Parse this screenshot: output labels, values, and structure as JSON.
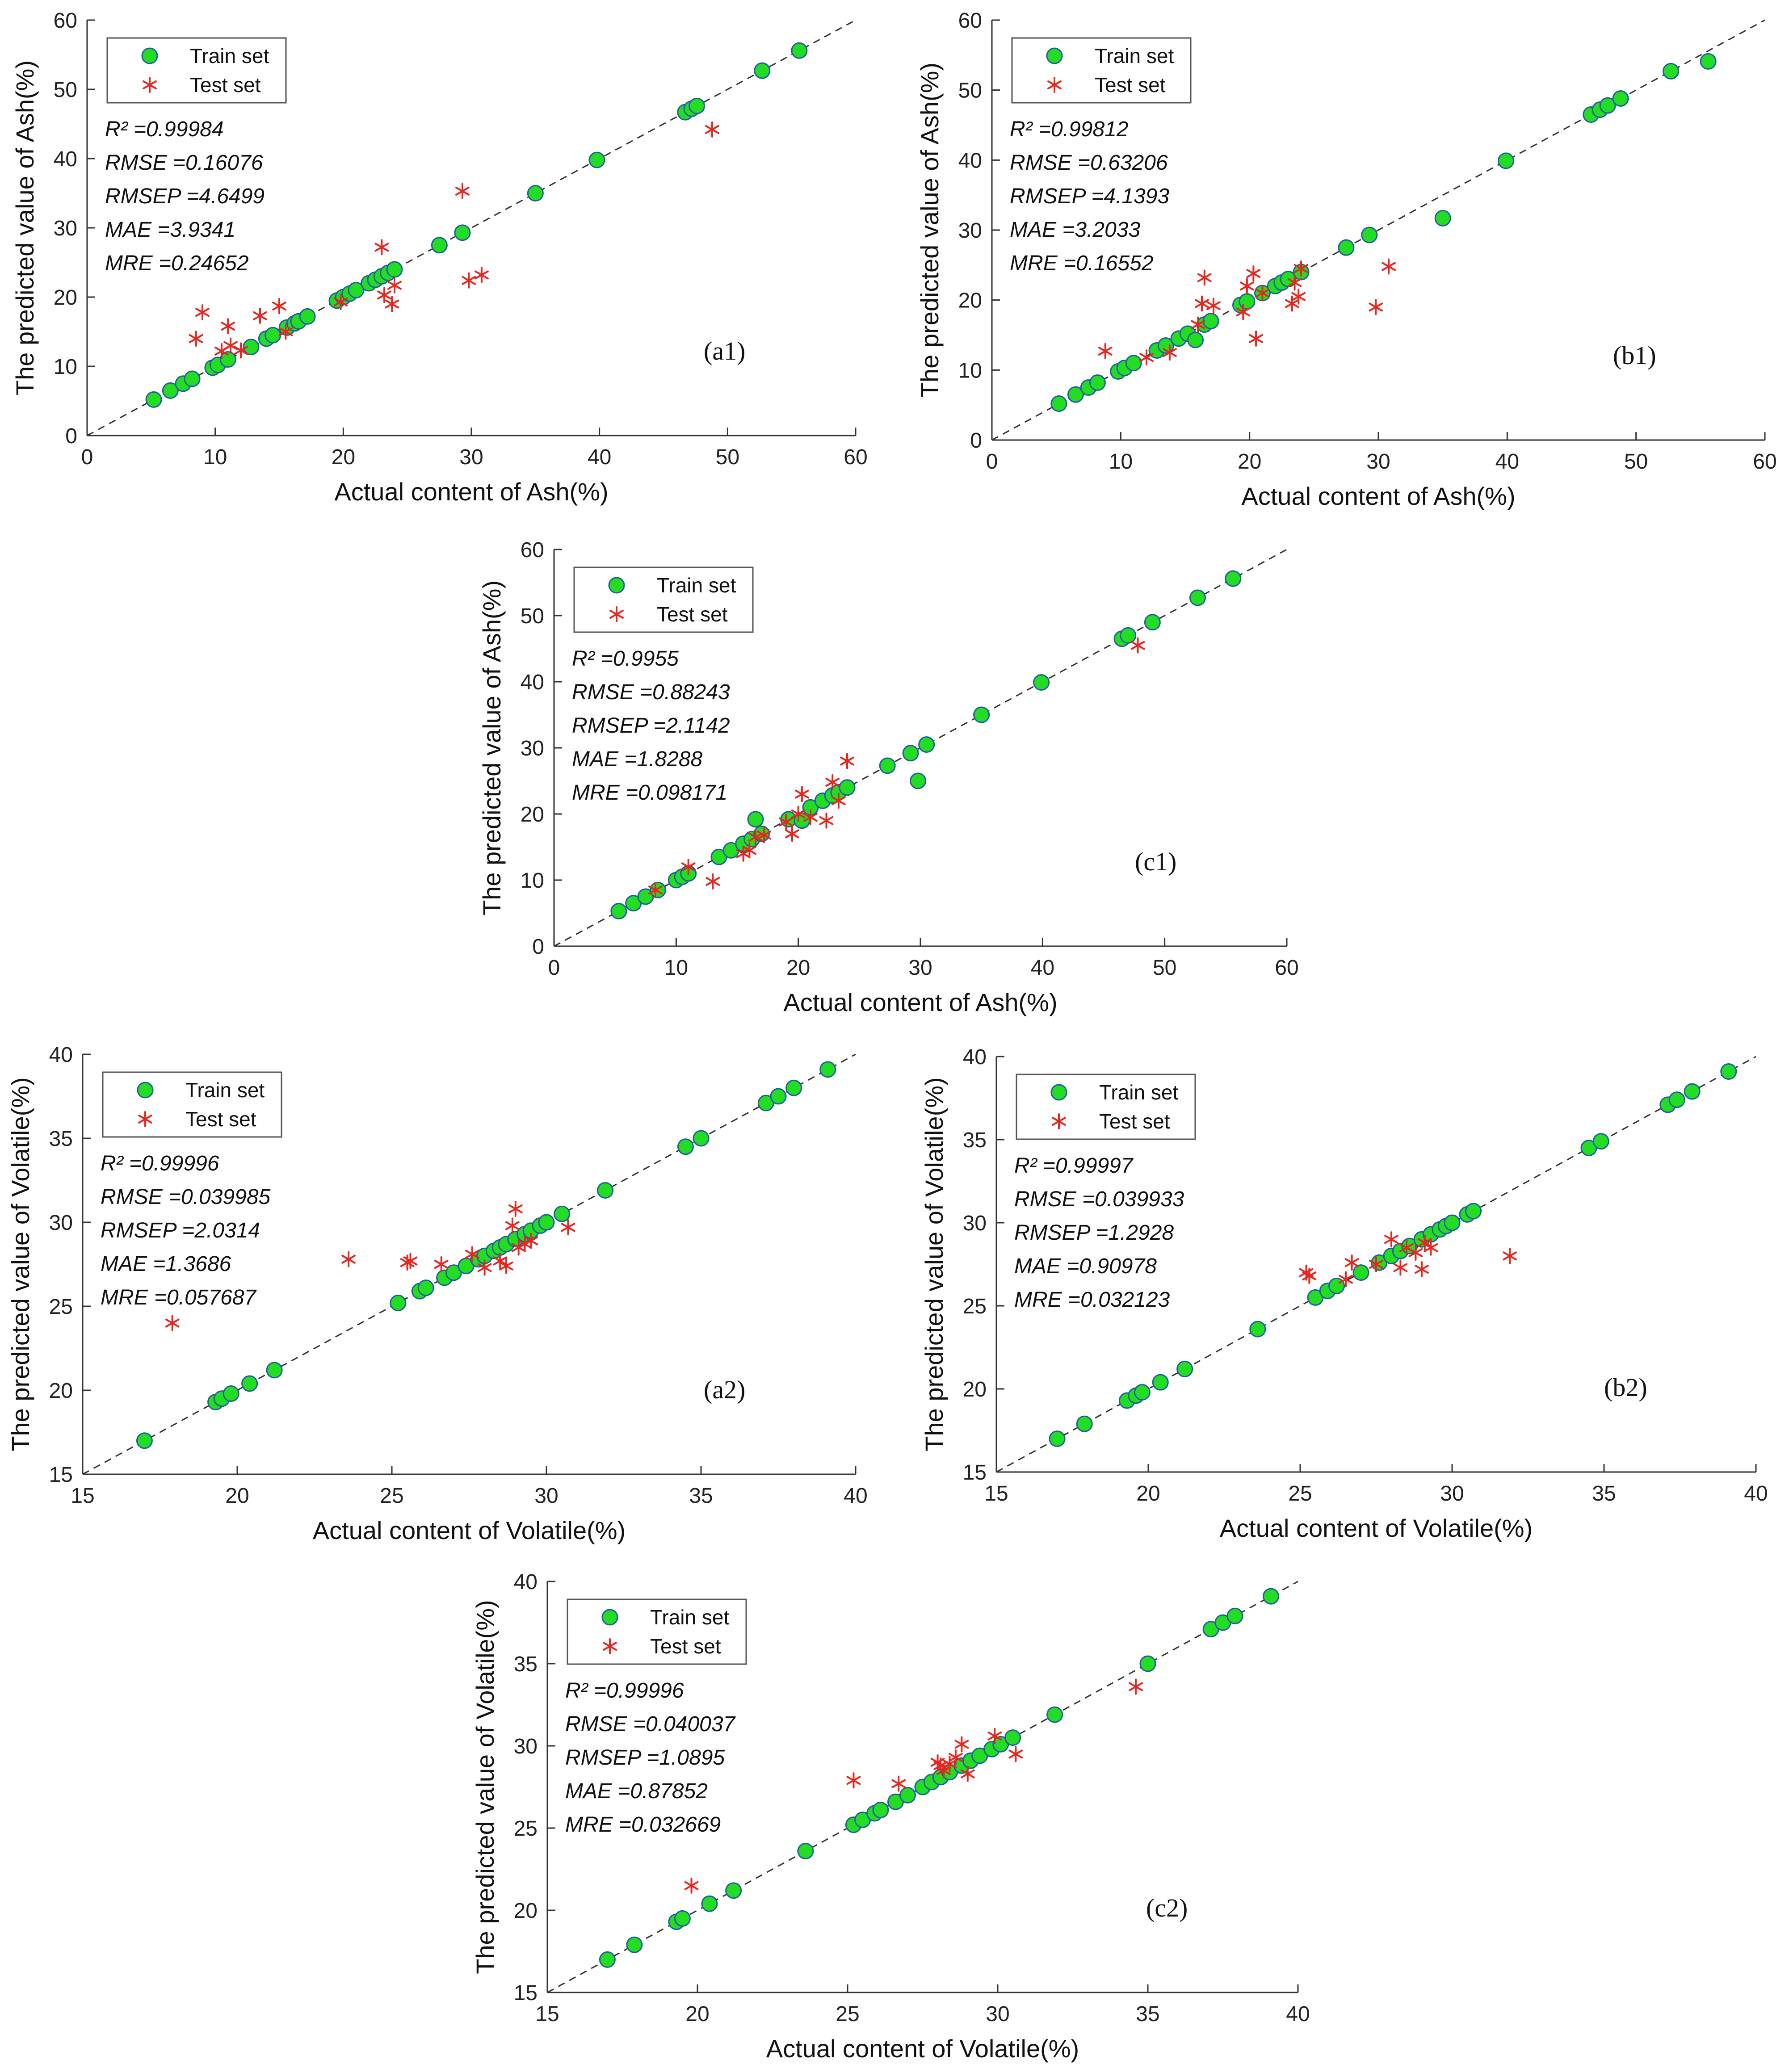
{
  "chart_data": [
    {
      "type": "scatter",
      "panel": "(a1)",
      "xlabel": "Actual content of Ash(%)",
      "ylabel": "The predicted value of Ash(%)",
      "xlim": [
        0,
        60
      ],
      "ylim": [
        0,
        60
      ],
      "xticks": [
        "0",
        "10",
        "20",
        "30",
        "40",
        "50",
        "60"
      ],
      "yticks": [
        "0",
        "10",
        "20",
        "30",
        "40",
        "50",
        "60"
      ],
      "legend": [
        "Train set",
        "Test set"
      ],
      "stats": [
        "R² =0.99984",
        "RMSE =0.16076",
        "RMSEP =4.6499",
        "MAE =3.9341",
        "MRE =0.24652"
      ],
      "series": [
        {
          "name": "Train set",
          "x": [
            5.2,
            6.5,
            7.5,
            8.2,
            9.8,
            10.2,
            11,
            12.8,
            14,
            14.5,
            15.6,
            16.2,
            16.5,
            17.2,
            19.5,
            20,
            20.5,
            21,
            22,
            22.5,
            23,
            23.5,
            24,
            27.5,
            29.3,
            35,
            39.8,
            46.7,
            47.2,
            47.6,
            52.7,
            55.6
          ],
          "y": [
            5.2,
            6.5,
            7.5,
            8.2,
            9.8,
            10.2,
            11,
            12.8,
            14,
            14.5,
            15.6,
            16.2,
            16.5,
            17.2,
            19.5,
            20,
            20.5,
            21,
            22,
            22.5,
            23,
            23.5,
            24,
            27.5,
            29.3,
            35,
            39.8,
            46.7,
            47.2,
            47.6,
            52.7,
            55.6
          ]
        },
        {
          "name": "Test set",
          "x": [
            8.5,
            9,
            10.5,
            11,
            12,
            13.5,
            15,
            15.5,
            19.8,
            23,
            23.8,
            24,
            23.2,
            29.3,
            29.8,
            30.8,
            48.8,
            11.2
          ],
          "y": [
            14,
            17.8,
            12.2,
            15.8,
            12.3,
            17.3,
            18.7,
            15,
            19.3,
            27.2,
            19,
            21.7,
            20.3,
            35.3,
            22.4,
            23.2,
            44.2,
            13
          ]
        }
      ]
    },
    {
      "type": "scatter",
      "panel": "(b1)",
      "xlabel": "Actual content of Ash(%)",
      "ylabel": "The predicted value of Ash(%)",
      "xlim": [
        0,
        60
      ],
      "ylim": [
        0,
        60
      ],
      "xticks": [
        "0",
        "10",
        "20",
        "30",
        "40",
        "50",
        "60"
      ],
      "yticks": [
        "0",
        "10",
        "20",
        "30",
        "40",
        "50",
        "60"
      ],
      "legend": [
        "Train set",
        "Test set"
      ],
      "stats": [
        "R² =0.99812",
        "RMSE =0.63206",
        "RMSEP =4.1393",
        "MAE =3.2033",
        "MRE =0.16552"
      ],
      "series": [
        {
          "name": "Train set",
          "x": [
            5.2,
            6.5,
            7.5,
            8.2,
            9.8,
            10.3,
            11,
            12.8,
            13.5,
            14.5,
            15.2,
            15.8,
            16.5,
            17,
            19.3,
            19.8,
            21,
            22,
            22.5,
            23,
            24,
            27.5,
            29.3,
            35,
            39.9,
            46.5,
            47.2,
            47.8,
            48.8,
            52.7,
            55.6
          ],
          "y": [
            5.2,
            6.5,
            7.5,
            8.2,
            9.8,
            10.3,
            11,
            12.8,
            13.5,
            14.5,
            15.2,
            14.3,
            16.5,
            17,
            19.3,
            19.8,
            21,
            22,
            22.5,
            23,
            24,
            27.5,
            29.3,
            31.7,
            39.9,
            46.5,
            47.2,
            47.8,
            48.8,
            52.7,
            54.1
          ]
        },
        {
          "name": "Test set",
          "x": [
            8.8,
            12,
            13.8,
            16,
            16.5,
            17.2,
            16.3,
            19.5,
            19.8,
            20.3,
            20.5,
            21,
            23.3,
            23.5,
            23.8,
            24,
            29.8,
            30.8
          ],
          "y": [
            12.7,
            11.8,
            12.5,
            16.5,
            23.2,
            19.2,
            19.5,
            18.3,
            22,
            23.8,
            14.5,
            21,
            19.5,
            22.5,
            20.5,
            24.5,
            19,
            24.8
          ]
        }
      ]
    },
    {
      "type": "scatter",
      "panel": "(c1)",
      "xlabel": "Actual content of Ash(%)",
      "ylabel": "The predicted value of Ash(%)",
      "xlim": [
        0,
        60
      ],
      "ylim": [
        0,
        60
      ],
      "xticks": [
        "0",
        "10",
        "20",
        "30",
        "40",
        "50",
        "60"
      ],
      "yticks": [
        "0",
        "10",
        "20",
        "30",
        "40",
        "50",
        "60"
      ],
      "legend": [
        "Train set",
        "Test set"
      ],
      "stats": [
        "R² =0.9955",
        "RMSE =0.88243",
        "RMSEP =2.1142",
        "MAE =1.8288",
        "MRE =0.098171"
      ],
      "series": [
        {
          "name": "Train set",
          "x": [
            5.3,
            6.5,
            7.5,
            8.5,
            10,
            10.5,
            11,
            13.5,
            14.5,
            15.5,
            16.2,
            16.5,
            17,
            19.2,
            20.3,
            21,
            22,
            22.8,
            23.3,
            24,
            27.3,
            29.2,
            30.5,
            29.8,
            35,
            39.9,
            46.5,
            47,
            49,
            52.7,
            55.6
          ],
          "y": [
            5.3,
            6.5,
            7.5,
            8.5,
            10,
            10.5,
            11,
            13.5,
            14.5,
            15.5,
            16.2,
            19.2,
            17,
            19.2,
            19,
            21,
            22,
            22.8,
            23.3,
            24,
            27.3,
            29.2,
            30.5,
            25,
            35,
            39.9,
            46.5,
            47,
            49,
            52.7,
            55.6
          ]
        },
        {
          "name": "Test set",
          "x": [
            8.3,
            11,
            13,
            15.5,
            16,
            16.5,
            17.2,
            19,
            19.5,
            20,
            20.3,
            21,
            22.3,
            22.8,
            23.3,
            24,
            47.8
          ],
          "y": [
            8.5,
            12,
            9.8,
            14,
            14.5,
            16.5,
            16.8,
            18.8,
            17,
            20,
            23,
            19.5,
            19,
            24.8,
            22,
            28,
            45.5
          ]
        }
      ]
    },
    {
      "type": "scatter",
      "panel": "(a2)",
      "xlabel": "Actual content of Volatile(%)",
      "ylabel": "The predicted value of Volatile(%)",
      "xlim": [
        15,
        40
      ],
      "ylim": [
        15,
        40
      ],
      "xticks": [
        "15",
        "20",
        "25",
        "30",
        "35",
        "40"
      ],
      "yticks": [
        "15",
        "20",
        "25",
        "30",
        "35",
        "40"
      ],
      "legend": [
        "Train set",
        "Test set"
      ],
      "stats": [
        "R² =0.99996",
        "RMSE =0.039985",
        "RMSEP =2.0314",
        "MAE =1.3686",
        "MRE =0.057687"
      ],
      "series": [
        {
          "name": "Train set",
          "x": [
            17,
            19.3,
            19.5,
            19.8,
            20.4,
            21.2,
            25.2,
            25.9,
            26.1,
            26.7,
            27,
            27.4,
            27.8,
            28,
            28.3,
            28.5,
            28.7,
            29,
            29.3,
            29.5,
            29.8,
            30,
            30.5,
            31.9,
            34.5,
            35,
            37.1,
            37.5,
            38,
            39.1
          ],
          "y": [
            17,
            19.3,
            19.5,
            19.8,
            20.4,
            21.2,
            25.2,
            25.9,
            26.1,
            26.7,
            27,
            27.4,
            27.8,
            28,
            28.3,
            28.5,
            28.7,
            29,
            29.3,
            29.5,
            29.8,
            30,
            30.5,
            31.9,
            34.5,
            35,
            37.1,
            37.5,
            38,
            39.1
          ]
        },
        {
          "name": "Test set",
          "x": [
            17.9,
            23.6,
            25.5,
            25.6,
            26.6,
            27.6,
            28,
            28.5,
            28.7,
            28.9,
            29,
            29.1,
            29.3,
            29.5,
            30.7
          ],
          "y": [
            24,
            27.8,
            27.6,
            27.7,
            27.5,
            28.1,
            27.3,
            27.7,
            27.4,
            29.8,
            30.8,
            28.5,
            28.7,
            28.9,
            29.7
          ]
        }
      ]
    },
    {
      "type": "scatter",
      "panel": "(b2)",
      "xlabel": "Actual content of Volatile(%)",
      "ylabel": "The predicted value of Volatile(%)",
      "xlim": [
        15,
        40
      ],
      "ylim": [
        15,
        40
      ],
      "xticks": [
        "15",
        "20",
        "25",
        "30",
        "35",
        "40"
      ],
      "yticks": [
        "15",
        "20",
        "25",
        "30",
        "35",
        "40"
      ],
      "legend": [
        "Train set",
        "Test set"
      ],
      "stats": [
        "R² =0.99997",
        "RMSE =0.039933",
        "RMSEP =1.2928",
        "MAE =0.90978",
        "MRE =0.032123"
      ],
      "series": [
        {
          "name": "Train set",
          "x": [
            17,
            17.9,
            19.3,
            19.6,
            19.8,
            20.4,
            21.2,
            23.6,
            25.5,
            25.9,
            26.2,
            27,
            27.6,
            28,
            28.3,
            28.6,
            29,
            29.3,
            29.6,
            29.8,
            30,
            30.5,
            30.7,
            34.5,
            34.9,
            37.1,
            37.4,
            37.9,
            39.1
          ],
          "y": [
            17,
            17.9,
            19.3,
            19.6,
            19.8,
            20.4,
            21.2,
            23.6,
            25.5,
            25.9,
            26.2,
            27,
            27.6,
            28,
            28.3,
            28.6,
            29,
            29.3,
            29.6,
            29.8,
            30,
            30.5,
            30.7,
            34.5,
            34.9,
            37.1,
            37.4,
            37.9,
            39.1
          ]
        },
        {
          "name": "Test set",
          "x": [
            25.2,
            25.3,
            26.5,
            26.7,
            27.5,
            28,
            28.3,
            28.5,
            28.8,
            29,
            29.1,
            29.3,
            31.9
          ],
          "y": [
            27,
            26.8,
            26.6,
            27.6,
            27.5,
            29,
            27.3,
            28.5,
            28.2,
            27.2,
            28.8,
            28.5,
            28
          ]
        }
      ]
    },
    {
      "type": "scatter",
      "panel": "(c2)",
      "xlabel": "Actual content of Volatile(%)",
      "ylabel": "The predicted value of Volatile(%)",
      "xlim": [
        15,
        40
      ],
      "ylim": [
        15,
        40
      ],
      "xticks": [
        "15",
        "20",
        "25",
        "30",
        "35",
        "40"
      ],
      "yticks": [
        "15",
        "20",
        "25",
        "30",
        "35",
        "40"
      ],
      "legend": [
        "Train set",
        "Test set"
      ],
      "stats": [
        "R² =0.99996",
        "RMSE =0.040037",
        "RMSEP =1.0895",
        "MAE =0.87852",
        "MRE =0.032669"
      ],
      "series": [
        {
          "name": "Train set",
          "x": [
            17,
            17.9,
            19.3,
            19.5,
            20.4,
            21.2,
            23.6,
            25.2,
            25.5,
            25.9,
            26.1,
            26.6,
            27,
            27.5,
            27.8,
            28.1,
            28.4,
            28.8,
            29.1,
            29.4,
            29.8,
            30.1,
            30.5,
            31.9,
            35,
            37.1,
            37.5,
            37.9,
            39.1
          ],
          "y": [
            17,
            17.9,
            19.3,
            19.5,
            20.4,
            21.2,
            23.6,
            25.2,
            25.5,
            25.9,
            26.1,
            26.6,
            27,
            27.5,
            27.8,
            28.1,
            28.4,
            28.8,
            29.1,
            29.4,
            29.8,
            30.1,
            30.5,
            31.9,
            35,
            37.1,
            37.5,
            37.9,
            39.1
          ]
        },
        {
          "name": "Test set",
          "x": [
            19.8,
            25.2,
            26.7,
            28,
            28.1,
            28.2,
            28.4,
            28.6,
            28.8,
            29,
            29.9,
            30.6,
            34.6
          ],
          "y": [
            21.5,
            27.9,
            27.7,
            29,
            28.8,
            28.5,
            28.9,
            29.3,
            30.1,
            28.3,
            30.6,
            29.5,
            33.6
          ]
        }
      ]
    }
  ]
}
